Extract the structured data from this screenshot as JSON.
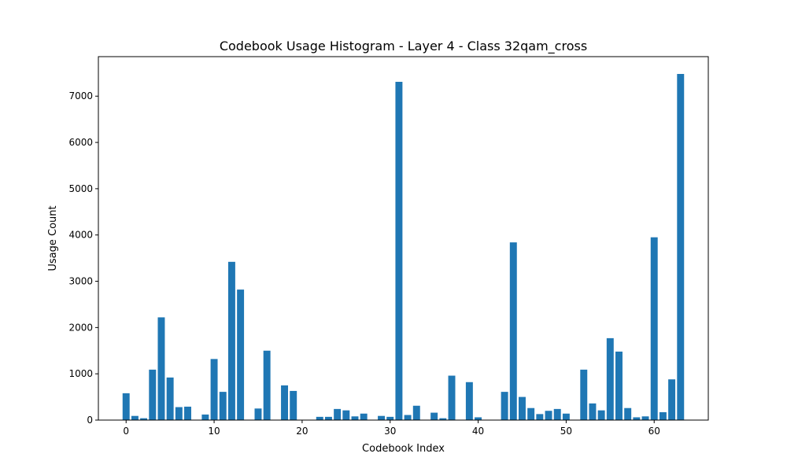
{
  "chart_data": {
    "type": "bar",
    "title": "Codebook Usage Histogram - Layer 4 - Class 32qam_cross",
    "xlabel": "Codebook Index",
    "ylabel": "Usage Count",
    "x": [
      0,
      1,
      2,
      3,
      4,
      5,
      6,
      7,
      8,
      9,
      10,
      11,
      12,
      13,
      14,
      15,
      16,
      17,
      18,
      19,
      20,
      21,
      22,
      23,
      24,
      25,
      26,
      27,
      28,
      29,
      30,
      31,
      32,
      33,
      34,
      35,
      36,
      37,
      38,
      39,
      40,
      41,
      42,
      43,
      44,
      45,
      46,
      47,
      48,
      49,
      50,
      51,
      52,
      53,
      54,
      55,
      56,
      57,
      58,
      59,
      60,
      61,
      62,
      63
    ],
    "values": [
      580,
      90,
      40,
      1090,
      2220,
      920,
      280,
      290,
      0,
      120,
      1320,
      610,
      3420,
      2820,
      0,
      250,
      1500,
      0,
      750,
      630,
      0,
      0,
      70,
      70,
      240,
      210,
      80,
      140,
      0,
      90,
      70,
      7310,
      110,
      310,
      0,
      160,
      40,
      960,
      0,
      820,
      60,
      0,
      0,
      610,
      3840,
      500,
      260,
      130,
      200,
      240,
      140,
      0,
      1090,
      360,
      210,
      1770,
      1480,
      260,
      60,
      80,
      3950,
      170,
      880,
      7480
    ],
    "xlim": [
      -3.15,
      66.15
    ],
    "ylim": [
      0,
      7854
    ],
    "xticks": [
      0,
      10,
      20,
      30,
      40,
      50,
      60
    ],
    "yticks": [
      0,
      1000,
      2000,
      3000,
      4000,
      5000,
      6000,
      7000
    ],
    "bar_width": 0.8,
    "bar_color": "#1f77b4",
    "grid": false,
    "legend": "none"
  }
}
